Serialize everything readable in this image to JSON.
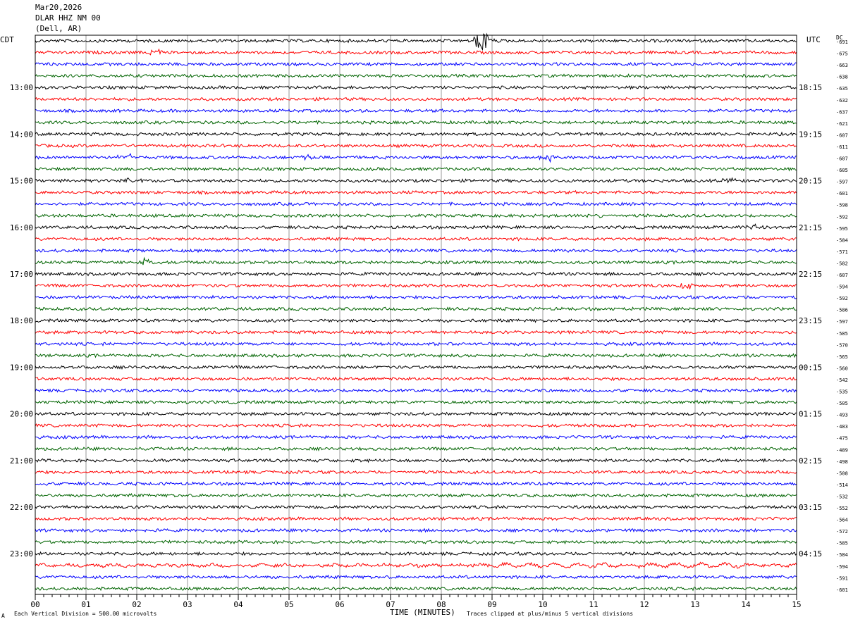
{
  "header": {
    "date": "Mar20,2026",
    "station": "DLAR HHZ NM 00",
    "location": "(Dell, AR)"
  },
  "left_tz": "CDT",
  "right_tz": "UTC",
  "dc_label": "DC",
  "footer": {
    "scale_note": "Each Vertical Division =  500.00 microvolts",
    "time_axis_label": "TIME (MINUTES)",
    "clip_note": "Traces clipped at plus/minus 5 vertical divisions",
    "corner_mark": "A"
  },
  "colors": {
    "c0": "#000000",
    "c1": "#ff0000",
    "c2": "#0000ff",
    "c3": "#006400",
    "grid": "#808080"
  },
  "chart_data": {
    "type": "helicorder",
    "x_tick_labels": [
      "00",
      "01",
      "02",
      "03",
      "04",
      "05",
      "06",
      "07",
      "08",
      "09",
      "10",
      "11",
      "12",
      "13",
      "14",
      "15"
    ],
    "xlim": [
      0,
      15
    ],
    "left_hour_labels": [
      "13:00",
      "14:00",
      "15:00",
      "16:00",
      "17:00",
      "18:00",
      "19:00",
      "20:00",
      "21:00",
      "22:00",
      "23:00"
    ],
    "right_hour_labels": [
      "18:15",
      "19:15",
      "20:15",
      "21:15",
      "22:15",
      "23:15",
      "00:15",
      "01:15",
      "02:15",
      "03:15",
      "04:15"
    ],
    "dc_offsets": [
      -691,
      -675,
      -663,
      -638,
      -635,
      -632,
      -637,
      -621,
      -607,
      -611,
      -607,
      -605,
      -597,
      -601,
      -598,
      -592,
      -595,
      -584,
      -571,
      -582,
      -607,
      -594,
      -592,
      -586,
      -597,
      -585,
      -570,
      -565,
      -560,
      -542,
      -535,
      -505,
      -493,
      -483,
      -475,
      -489,
      -498,
      -508,
      -514,
      -532,
      -552,
      -564,
      -572,
      -585,
      -584,
      -594,
      -591,
      -601
    ],
    "events": [
      {
        "trace": 0,
        "minute": 8.8,
        "amp": 2.6
      },
      {
        "trace": 1,
        "minute": 2.4,
        "amp": 0.8
      },
      {
        "trace": 10,
        "minute": 1.8,
        "amp": 0.9
      },
      {
        "trace": 10,
        "minute": 5.4,
        "amp": 0.6
      },
      {
        "trace": 10,
        "minute": 10.1,
        "amp": 1.2
      },
      {
        "trace": 12,
        "minute": 1.9,
        "amp": 1.0
      },
      {
        "trace": 12,
        "minute": 13.7,
        "amp": 0.6
      },
      {
        "trace": 15,
        "minute": 11.0,
        "amp": 0.5
      },
      {
        "trace": 16,
        "minute": 14.2,
        "amp": 0.6
      },
      {
        "trace": 19,
        "minute": 2.2,
        "amp": 1.0
      },
      {
        "trace": 21,
        "minute": 12.8,
        "amp": 0.9
      }
    ]
  }
}
